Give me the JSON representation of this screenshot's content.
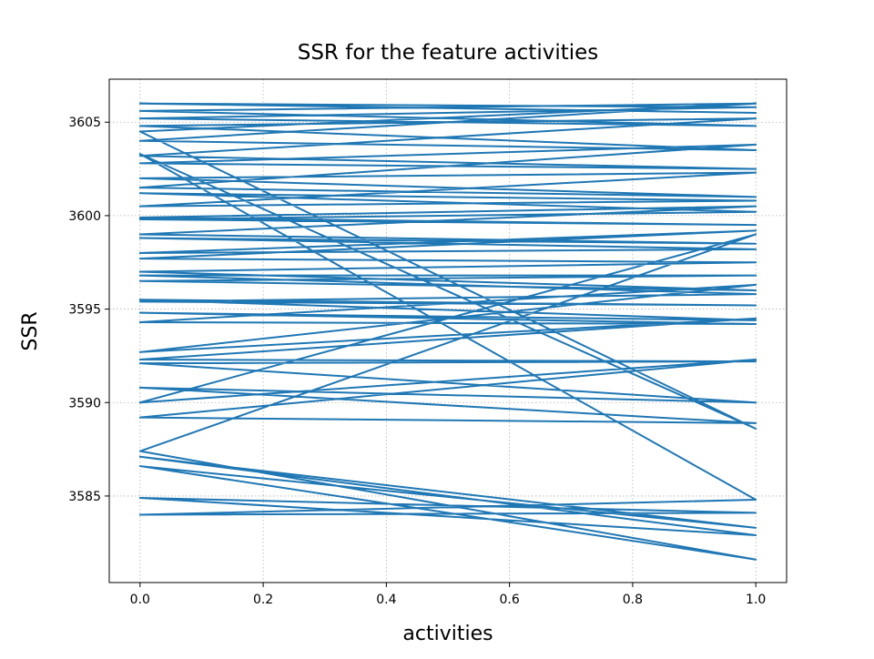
{
  "chart_data": {
    "type": "line",
    "title": "SSR for the feature activities",
    "x_label": "activities",
    "y_label": "SSR",
    "series": [
      {
        "name": "SSR",
        "color": "#1f77b4",
        "x": [
          0,
          1,
          0,
          1,
          0,
          1,
          0,
          1,
          0,
          1,
          0,
          1,
          0,
          1,
          0,
          1,
          0,
          1,
          0,
          1,
          0,
          1,
          0,
          1,
          0,
          1,
          0,
          1,
          0,
          1,
          0,
          1,
          0,
          1,
          0,
          1,
          0,
          1,
          0,
          1,
          0,
          1,
          0,
          1,
          0,
          1,
          0,
          1,
          0,
          1,
          0,
          1,
          0,
          1,
          0,
          1,
          0,
          1,
          0,
          1,
          0,
          1,
          0,
          1,
          0,
          1,
          0,
          1,
          0,
          1,
          0,
          1,
          0,
          1,
          0,
          1
        ],
        "values": [
          3606,
          3605.5,
          3606,
          3605.8,
          3605.2,
          3604.8,
          3605.6,
          3606,
          3604,
          3603.5,
          3604.8,
          3605.2,
          3603.2,
          3602.5,
          3602.8,
          3603.8,
          3601.5,
          3601,
          3602,
          3602.3,
          3600.5,
          3600.8,
          3601.2,
          3600.2,
          3599.8,
          3599.5,
          3599.9,
          3600.5,
          3599,
          3598.5,
          3598.8,
          3598.2,
          3598,
          3599.2,
          3597.7,
          3597.5,
          3597,
          3596,
          3596.5,
          3596.8,
          3596.8,
          3595.8,
          3595.4,
          3595.2,
          3595.5,
          3594.4,
          3594.8,
          3594.2,
          3594.3,
          3596.3,
          3592.7,
          3594.5,
          3592.3,
          3592.2,
          3592.1,
          3590.0,
          3590.8,
          3588.9,
          3589.2,
          3592.3,
          3590.0,
          3599.0,
          3587.4,
          3581.6,
          3586.6,
          3583.3,
          3587.1,
          3582.9,
          3584.9,
          3584.1,
          3584.0,
          3584.8,
          3603.3,
          3588.6,
          3604.5,
          3606
        ]
      }
    ],
    "xlim": [
      -0.05,
      1.05
    ],
    "ylim": [
      3580.37,
      3607.3
    ],
    "xticks": [
      {
        "value": 0,
        "label": "0.0"
      },
      {
        "value": 0.2,
        "label": "0.2"
      },
      {
        "value": 0.4,
        "label": "0.4"
      },
      {
        "value": 0.6,
        "label": "0.6"
      },
      {
        "value": 0.8,
        "label": "0.8"
      },
      {
        "value": 1,
        "label": "1.0"
      }
    ],
    "yticks": [
      3585,
      3590,
      3595,
      3600,
      3605
    ],
    "grid": true
  }
}
